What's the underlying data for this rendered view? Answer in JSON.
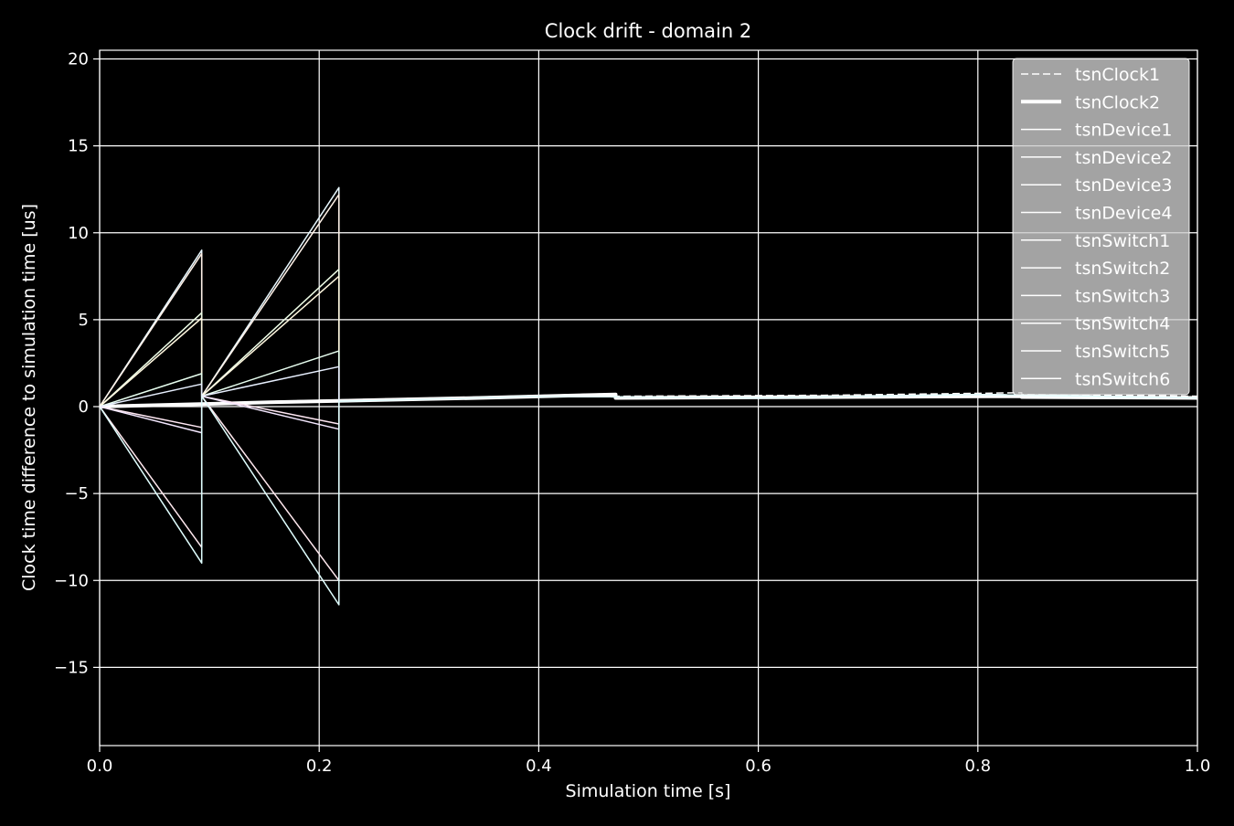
{
  "chart_data": {
    "type": "line",
    "title": "Clock drift - domain 2",
    "xlabel": "Simulation time [s]",
    "ylabel": "Clock time difference to simulation time [us]",
    "xlim": [
      0.0,
      1.0
    ],
    "ylim": [
      -19.5,
      20.5
    ],
    "x_ticks": [
      0.0,
      0.2,
      0.4,
      0.6,
      0.8,
      1.0
    ],
    "x_tick_labels": [
      "0.0",
      "0.2",
      "0.4",
      "0.6",
      "0.8",
      "1.0"
    ],
    "y_ticks": [
      -15,
      -10,
      -5,
      0,
      5,
      10,
      15,
      20
    ],
    "y_tick_labels": [
      "−15",
      "−10",
      "−5",
      "0",
      "5",
      "10",
      "15",
      "20"
    ],
    "grid": true,
    "legend_position": "top-right",
    "colors": {
      "background": "#000000",
      "axes": "#ffffff",
      "grid": "#ffffff",
      "legend_bg": "#cccccc"
    },
    "series": [
      {
        "name": "tsnClock1",
        "style": "dashed",
        "width": 1.5,
        "color": "#ffffff",
        "x": [
          0.0,
          0.093,
          0.093,
          0.155,
          0.155,
          0.345,
          0.345,
          0.47,
          0.47,
          0.66,
          0.66,
          0.84,
          0.84,
          1.0
        ],
        "y": [
          0.0,
          0.15,
          0.15,
          0.3,
          0.3,
          0.55,
          0.55,
          0.75,
          0.6,
          0.65,
          0.65,
          0.8,
          0.7,
          0.6
        ]
      },
      {
        "name": "tsnClock2",
        "style": "solid",
        "width": 4,
        "color": "#ffffff",
        "x": [
          0.0,
          0.155,
          0.155,
          0.345,
          0.345,
          0.47,
          0.47,
          0.84,
          0.84,
          1.0
        ],
        "y": [
          0.0,
          0.25,
          0.25,
          0.5,
          0.5,
          0.7,
          0.5,
          0.6,
          0.55,
          0.5
        ]
      },
      {
        "name": "tsnDevice1",
        "style": "solid",
        "width": 1.5,
        "color": "#e8f8ff",
        "x": [
          0.0,
          0.093,
          0.093,
          0.218,
          0.218,
          0.4,
          0.6,
          0.8,
          1.0
        ],
        "y": [
          0.0,
          9.0,
          0.6,
          12.6,
          0.3,
          0.6,
          0.5,
          0.7,
          0.5
        ]
      },
      {
        "name": "tsnDevice2",
        "style": "solid",
        "width": 1.5,
        "color": "#fff2e8",
        "x": [
          0.0,
          0.093,
          0.093,
          0.218,
          0.218,
          0.4,
          0.6,
          0.8,
          1.0
        ],
        "y": [
          0.0,
          8.8,
          0.6,
          12.2,
          0.3,
          0.6,
          0.5,
          0.7,
          0.5
        ]
      },
      {
        "name": "tsnDevice3",
        "style": "solid",
        "width": 1.5,
        "color": "#f0ffe8",
        "x": [
          0.0,
          0.093,
          0.093,
          0.218,
          0.218,
          0.4,
          0.6,
          0.8,
          1.0
        ],
        "y": [
          0.0,
          5.4,
          0.6,
          7.9,
          0.3,
          0.6,
          0.5,
          0.7,
          0.5
        ]
      },
      {
        "name": "tsnDevice4",
        "style": "solid",
        "width": 1.5,
        "color": "#fff8e0",
        "x": [
          0.0,
          0.093,
          0.093,
          0.218,
          0.218,
          0.4,
          0.6,
          0.8,
          1.0
        ],
        "y": [
          0.0,
          5.1,
          0.6,
          7.5,
          0.3,
          0.6,
          0.5,
          0.7,
          0.5
        ]
      },
      {
        "name": "tsnSwitch1",
        "style": "solid",
        "width": 1.5,
        "color": "#e8fff0",
        "x": [
          0.0,
          0.093,
          0.093,
          0.218,
          0.218,
          0.4,
          0.6,
          0.8,
          1.0
        ],
        "y": [
          0.0,
          1.9,
          0.6,
          3.2,
          0.3,
          0.6,
          0.5,
          0.7,
          0.5
        ]
      },
      {
        "name": "tsnSwitch2",
        "style": "solid",
        "width": 1.5,
        "color": "#e8f0ff",
        "x": [
          0.0,
          0.093,
          0.093,
          0.218,
          0.218,
          0.4,
          0.6,
          0.8,
          1.0
        ],
        "y": [
          0.0,
          1.3,
          0.6,
          2.3,
          0.3,
          0.6,
          0.5,
          0.7,
          0.5
        ]
      },
      {
        "name": "tsnSwitch3",
        "style": "solid",
        "width": 1.5,
        "color": "#ffe8f4",
        "x": [
          0.0,
          0.093,
          0.093,
          0.218,
          0.218,
          0.4,
          0.6,
          0.8,
          1.0
        ],
        "y": [
          0.0,
          -1.2,
          0.6,
          -1.0,
          0.3,
          0.6,
          0.5,
          0.7,
          0.5
        ]
      },
      {
        "name": "tsnSwitch4",
        "style": "solid",
        "width": 1.5,
        "color": "#f4e8ff",
        "x": [
          0.0,
          0.093,
          0.093,
          0.218,
          0.218,
          0.4,
          0.6,
          0.8,
          1.0
        ],
        "y": [
          0.0,
          -1.5,
          0.6,
          -1.3,
          0.3,
          0.6,
          0.5,
          0.7,
          0.5
        ]
      },
      {
        "name": "tsnSwitch5",
        "style": "solid",
        "width": 1.5,
        "color": "#ffe8ee",
        "x": [
          0.0,
          0.093,
          0.093,
          0.218,
          0.218,
          0.4,
          0.6,
          0.8,
          1.0
        ],
        "y": [
          0.0,
          -8.1,
          0.6,
          -10.0,
          0.3,
          0.6,
          0.5,
          0.7,
          0.5
        ]
      },
      {
        "name": "tsnSwitch6",
        "style": "solid",
        "width": 1.5,
        "color": "#e0ffff",
        "x": [
          0.0,
          0.093,
          0.093,
          0.218,
          0.218,
          0.4,
          0.6,
          0.8,
          1.0
        ],
        "y": [
          0.0,
          -9.0,
          0.6,
          -11.4,
          0.3,
          0.6,
          0.5,
          0.7,
          0.5
        ]
      }
    ]
  }
}
